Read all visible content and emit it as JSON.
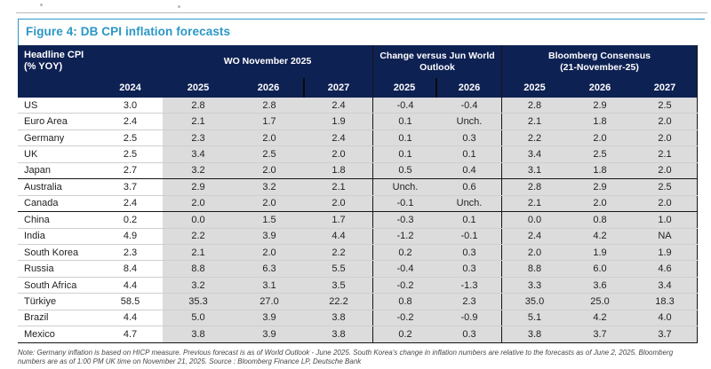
{
  "figure": {
    "title": "Figure 4: DB CPI inflation forecasts",
    "accent_color": "#2b97c5",
    "header_color": "#0e2153"
  },
  "table": {
    "corner_line1": "Headline CPI",
    "corner_line2": "(% YOY)",
    "group_wo": "WO November 2025",
    "group_change": "Change versus Jun World Outlook",
    "group_bb_line1": "Bloomberg Consensus",
    "group_bb_line2": "(21-November-25)",
    "year_headers": [
      "2024",
      "2025",
      "2026",
      "2027",
      "2025",
      "2026",
      "2025",
      "2026",
      "2027"
    ],
    "rows": [
      {
        "country": "US",
        "values": [
          "3.0",
          "2.8",
          "2.8",
          "2.4",
          "-0.4",
          "-0.4",
          "2.8",
          "2.9",
          "2.5"
        ],
        "group_end": false
      },
      {
        "country": "Euro Area",
        "values": [
          "2.4",
          "2.1",
          "1.7",
          "1.9",
          "0.1",
          "Unch.",
          "2.1",
          "1.8",
          "2.0"
        ],
        "group_end": false
      },
      {
        "country": "Germany",
        "values": [
          "2.5",
          "2.3",
          "2.0",
          "2.4",
          "0.1",
          "0.3",
          "2.2",
          "2.0",
          "2.0"
        ],
        "group_end": false
      },
      {
        "country": "UK",
        "values": [
          "2.5",
          "3.4",
          "2.5",
          "2.0",
          "0.1",
          "0.1",
          "3.4",
          "2.5",
          "2.1"
        ],
        "group_end": false
      },
      {
        "country": "Japan",
        "values": [
          "2.7",
          "3.2",
          "2.0",
          "1.8",
          "0.5",
          "0.4",
          "3.1",
          "1.8",
          "2.0"
        ],
        "group_end": true
      },
      {
        "country": "Australia",
        "values": [
          "3.7",
          "2.9",
          "3.2",
          "2.1",
          "Unch.",
          "0.6",
          "2.8",
          "2.9",
          "2.5"
        ],
        "group_end": false
      },
      {
        "country": "Canada",
        "values": [
          "2.4",
          "2.0",
          "2.0",
          "2.0",
          "-0.1",
          "Unch.",
          "2.1",
          "2.0",
          "2.0"
        ],
        "group_end": true
      },
      {
        "country": "China",
        "values": [
          "0.2",
          "0.0",
          "1.5",
          "1.7",
          "-0.3",
          "0.1",
          "0.0",
          "0.8",
          "1.0"
        ],
        "group_end": false
      },
      {
        "country": "India",
        "values": [
          "4.9",
          "2.2",
          "3.9",
          "4.4",
          "-1.2",
          "-0.1",
          "2.4",
          "4.2",
          "NA"
        ],
        "group_end": false
      },
      {
        "country": "South Korea",
        "values": [
          "2.3",
          "2.1",
          "2.0",
          "2.2",
          "0.2",
          "0.3",
          "2.0",
          "1.9",
          "1.9"
        ],
        "group_end": false
      },
      {
        "country": "Russia",
        "values": [
          "8.4",
          "8.8",
          "6.3",
          "5.5",
          "-0.4",
          "0.3",
          "8.8",
          "6.0",
          "4.6"
        ],
        "group_end": false
      },
      {
        "country": "South Africa",
        "values": [
          "4.4",
          "3.2",
          "3.1",
          "3.5",
          "-0.2",
          "-1.3",
          "3.3",
          "3.6",
          "3.4"
        ],
        "group_end": false
      },
      {
        "country": "Türkiye",
        "values": [
          "58.5",
          "35.3",
          "27.0",
          "22.2",
          "0.8",
          "2.3",
          "35.0",
          "25.0",
          "18.3"
        ],
        "group_end": false
      },
      {
        "country": "Brazil",
        "values": [
          "4.4",
          "5.0",
          "3.9",
          "3.8",
          "-0.2",
          "-0.9",
          "5.1",
          "4.2",
          "4.0"
        ],
        "group_end": false
      },
      {
        "country": "Mexico",
        "values": [
          "4.7",
          "3.8",
          "3.9",
          "3.8",
          "0.2",
          "0.3",
          "3.8",
          "3.7",
          "3.7"
        ],
        "group_end": true
      }
    ]
  },
  "note": "Note: Germany inflation is based on HICP measure. Previous forecast is as of World Outlook - June 2025. South Korea's change in inflation numbers are relative to the forecasts as of June 2, 2025. Bloomberg numbers are as of 1:00 PM UK time on November 21, 2025. Source : Bloomberg Finance LP, Deutsche Bank"
}
